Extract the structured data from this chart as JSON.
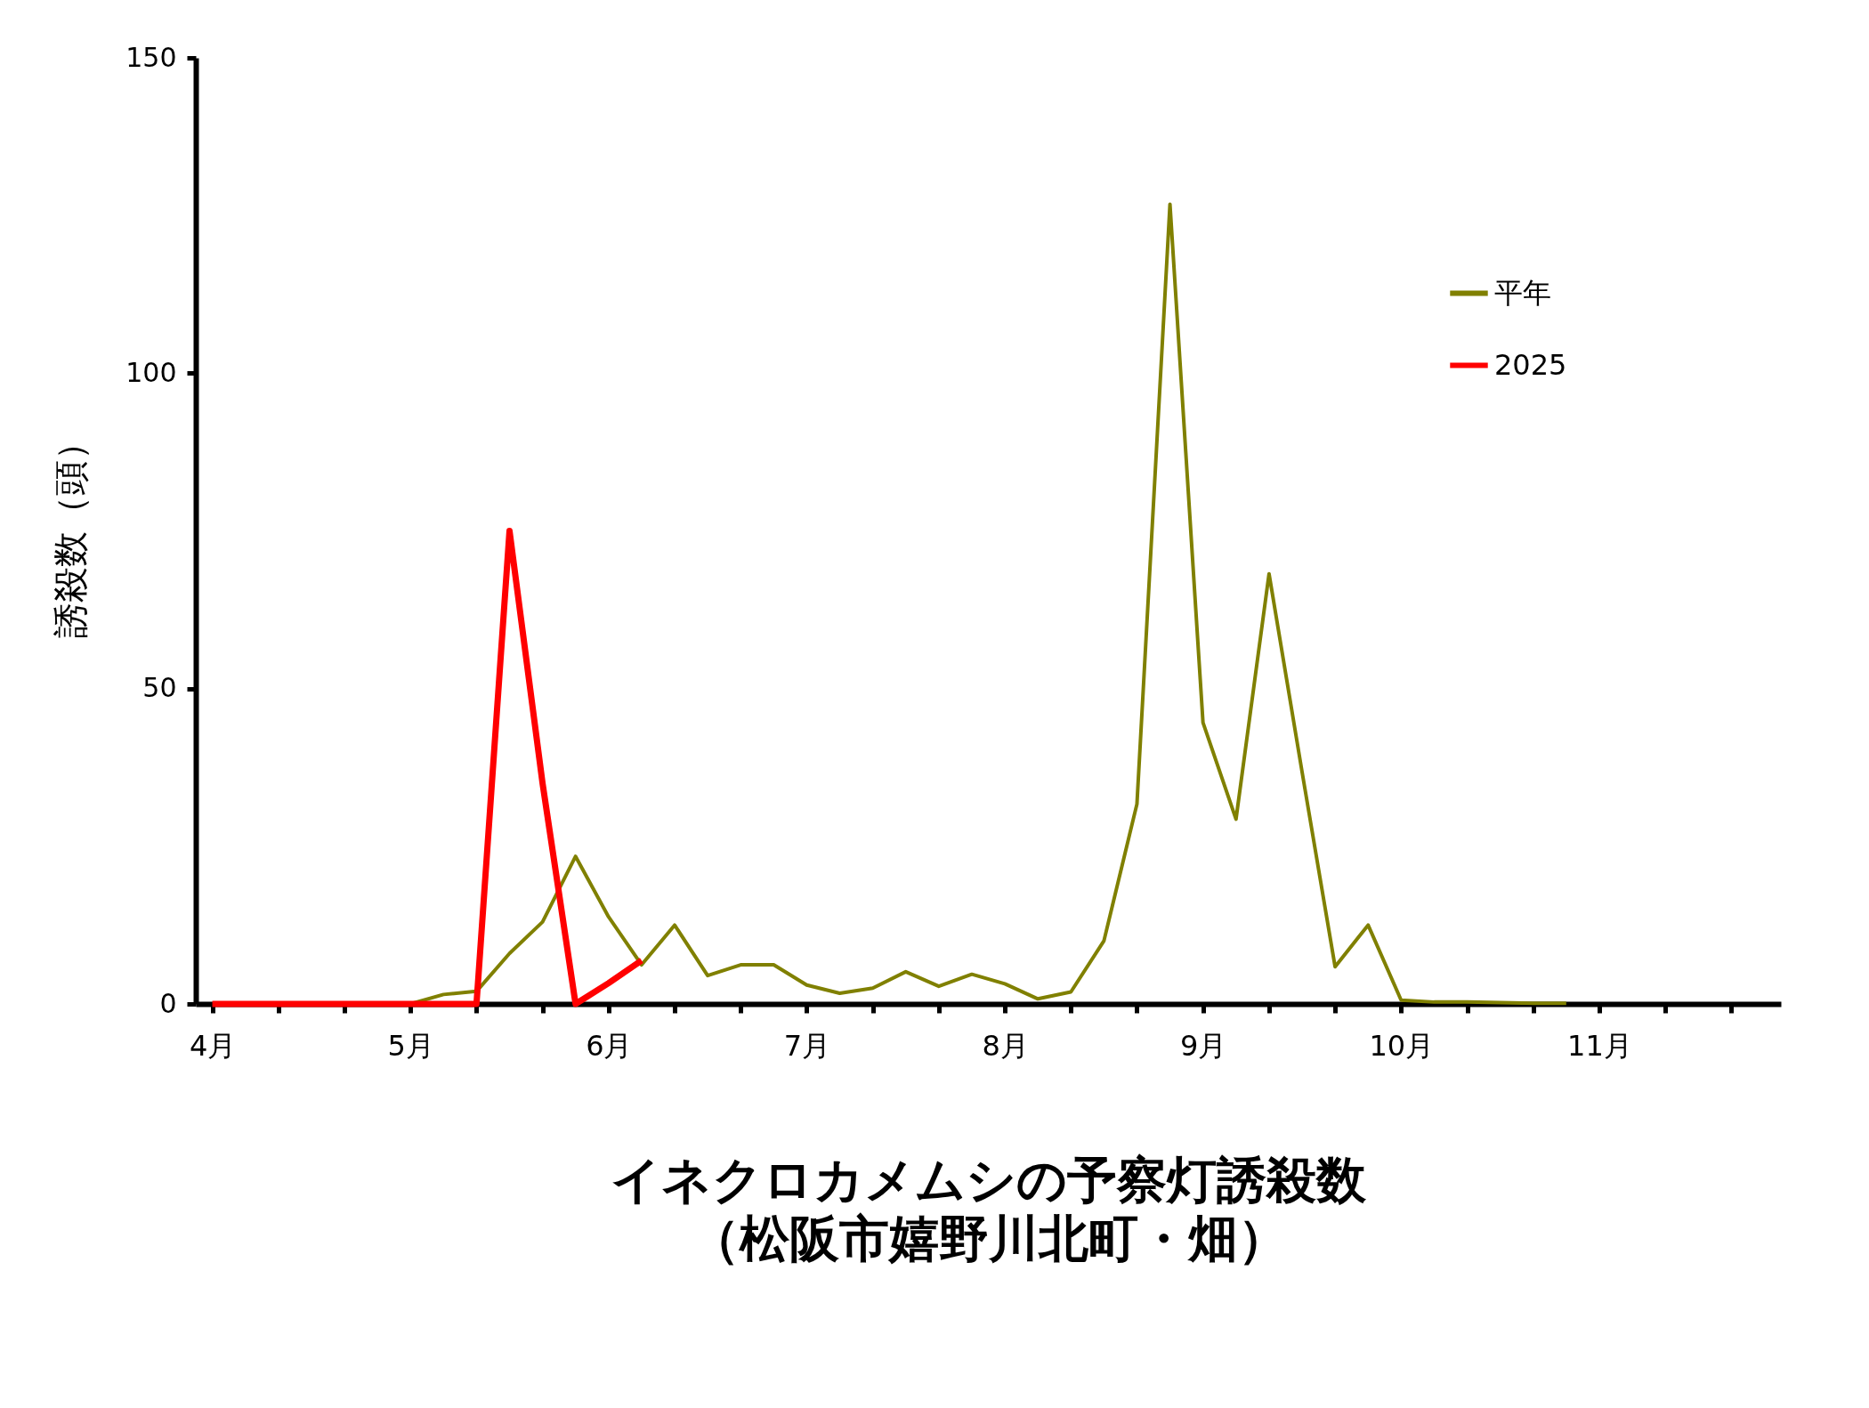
{
  "chart_data": {
    "type": "line",
    "title": [
      "イネクロカメムシの予察灯誘殺数",
      "（松阪市嬉野川北町・畑）"
    ],
    "ylabel": "誘殺数（頭）",
    "categories": [
      "4月",
      null,
      null,
      null,
      null,
      null,
      "5月",
      null,
      null,
      null,
      null,
      null,
      "6月",
      null,
      null,
      null,
      null,
      null,
      "7月",
      null,
      null,
      null,
      null,
      null,
      "8月",
      null,
      null,
      null,
      null,
      null,
      "9月",
      null,
      null,
      null,
      null,
      null,
      "10月",
      null,
      null,
      null,
      null,
      null,
      "11月",
      null,
      null,
      null,
      null,
      null
    ],
    "series": [
      {
        "name": "平年",
        "color": "#808000",
        "values": [
          null,
          null,
          null,
          null,
          null,
          0,
          0,
          1.5,
          2,
          8,
          13,
          23.4,
          13.8,
          6.2,
          12.5,
          4.5,
          6.2,
          6.2,
          3,
          1.7,
          2.5,
          5.1,
          2.8,
          4.7,
          3.2,
          0.8,
          1.9,
          10,
          31.7,
          126.8,
          44.6,
          29.3,
          68.2,
          36.8,
          5.9,
          12.5,
          0.6,
          0.3,
          0.3,
          0.2,
          0.1,
          0.1,
          null,
          null,
          null,
          null,
          null,
          null
        ]
      },
      {
        "name": "2025",
        "color": "#ff0000",
        "values": [
          0,
          0,
          0,
          0,
          0,
          0,
          0,
          0,
          0,
          75,
          35,
          0,
          3.3,
          6.9,
          null,
          null,
          null,
          null,
          null,
          null,
          null,
          null,
          null,
          null,
          null,
          null,
          null,
          null,
          null,
          null,
          null,
          null,
          null,
          null,
          null,
          null,
          null,
          null,
          null,
          null,
          null,
          null,
          null,
          null,
          null,
          null,
          null,
          null
        ]
      }
    ],
    "ylim": [
      0,
      150
    ],
    "yticks": [
      0,
      50,
      100,
      150
    ],
    "grid": false,
    "legend": "top right",
    "marker": "none",
    "line_style": "solid"
  }
}
